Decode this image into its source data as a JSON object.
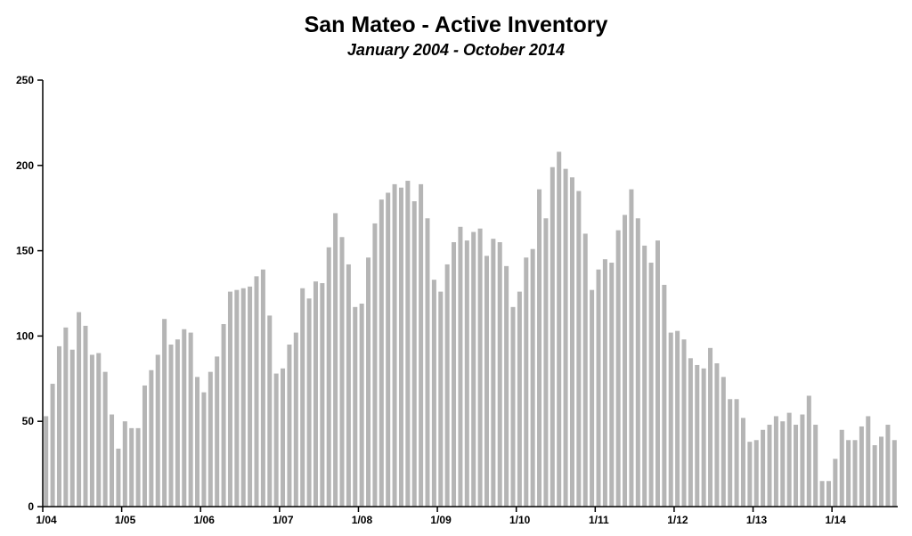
{
  "chart_data": {
    "type": "bar",
    "title": "San Mateo - Active Inventory",
    "subtitle": "January 2004 - October 2014",
    "xlabel": "",
    "ylabel": "",
    "ylim": [
      0,
      250
    ],
    "y_ticks": [
      0,
      50,
      100,
      150,
      200,
      250
    ],
    "x_tick_labels": [
      "1/04",
      "1/05",
      "1/06",
      "1/07",
      "1/08",
      "1/09",
      "1/10",
      "1/11",
      "1/12",
      "1/13",
      "1/14"
    ],
    "grid": false,
    "bar_color": "#b5b5b5",
    "categories": [
      "1/04",
      "2/04",
      "3/04",
      "4/04",
      "5/04",
      "6/04",
      "7/04",
      "8/04",
      "9/04",
      "10/04",
      "11/04",
      "12/04",
      "1/05",
      "2/05",
      "3/05",
      "4/05",
      "5/05",
      "6/05",
      "7/05",
      "8/05",
      "9/05",
      "10/05",
      "11/05",
      "12/05",
      "1/06",
      "2/06",
      "3/06",
      "4/06",
      "5/06",
      "6/06",
      "7/06",
      "8/06",
      "9/06",
      "10/06",
      "11/06",
      "12/06",
      "1/07",
      "2/07",
      "3/07",
      "4/07",
      "5/07",
      "6/07",
      "7/07",
      "8/07",
      "9/07",
      "10/07",
      "11/07",
      "12/07",
      "1/08",
      "2/08",
      "3/08",
      "4/08",
      "5/08",
      "6/08",
      "7/08",
      "8/08",
      "9/08",
      "10/08",
      "11/08",
      "12/08",
      "1/09",
      "2/09",
      "3/09",
      "4/09",
      "5/09",
      "6/09",
      "7/09",
      "8/09",
      "9/09",
      "10/09",
      "11/09",
      "12/09",
      "1/10",
      "2/10",
      "3/10",
      "4/10",
      "5/10",
      "6/10",
      "7/10",
      "8/10",
      "9/10",
      "10/10",
      "11/10",
      "12/10",
      "1/11",
      "2/11",
      "3/11",
      "4/11",
      "5/11",
      "6/11",
      "7/11",
      "8/11",
      "9/11",
      "10/11",
      "11/11",
      "12/11",
      "1/12",
      "2/12",
      "3/12",
      "4/12",
      "5/12",
      "6/12",
      "7/12",
      "8/12",
      "9/12",
      "10/12",
      "11/12",
      "12/12",
      "1/13",
      "2/13",
      "3/13",
      "4/13",
      "5/13",
      "6/13",
      "7/13",
      "8/13",
      "9/13",
      "10/13",
      "11/13",
      "12/13",
      "1/14",
      "2/14",
      "3/14",
      "4/14",
      "5/14",
      "6/14",
      "7/14",
      "8/14",
      "9/14",
      "10/14"
    ],
    "values": [
      53,
      72,
      94,
      105,
      92,
      114,
      106,
      89,
      90,
      79,
      54,
      34,
      50,
      46,
      46,
      71,
      80,
      89,
      110,
      95,
      98,
      104,
      102,
      76,
      67,
      79,
      88,
      107,
      126,
      127,
      128,
      129,
      135,
      139,
      112,
      78,
      81,
      95,
      102,
      128,
      122,
      132,
      131,
      152,
      172,
      158,
      142,
      117,
      119,
      146,
      166,
      180,
      184,
      189,
      187,
      191,
      179,
      189,
      169,
      133,
      126,
      142,
      155,
      164,
      156,
      161,
      163,
      147,
      157,
      155,
      141,
      117,
      126,
      146,
      151,
      186,
      169,
      199,
      208,
      198,
      193,
      185,
      160,
      127,
      139,
      145,
      143,
      162,
      171,
      186,
      169,
      153,
      143,
      156,
      130,
      102,
      103,
      98,
      87,
      83,
      81,
      93,
      84,
      76,
      63,
      63,
      52,
      38,
      39,
      45,
      48,
      53,
      50,
      55,
      48,
      54,
      65,
      48,
      15,
      15,
      28,
      45,
      39,
      39,
      47,
      53,
      36,
      41,
      48,
      39
    ]
  }
}
